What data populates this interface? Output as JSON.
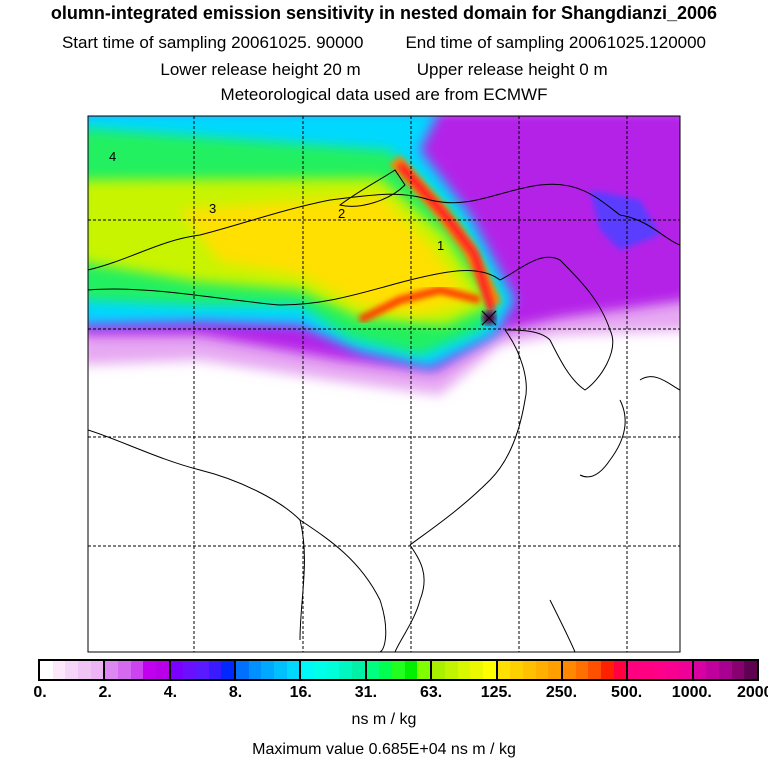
{
  "header": {
    "title": "olumn-integrated emission sensitivity in nested domain for Shangdianzi_2006",
    "start_label": "Start time of sampling 20061025. 90000",
    "end_label": "End time of sampling 20061025.120000",
    "lower_label": "Lower release height   20 m",
    "upper_label": "Upper release height    0 m",
    "met_label": "Meteorological data used are from ECMWF"
  },
  "map": {
    "contour_labels": [
      "1",
      "2",
      "3",
      "4"
    ],
    "station": "Shangdianzi"
  },
  "colorbar": {
    "ticks": [
      "0.",
      "2.",
      "4.",
      "8.",
      "16.",
      "31.",
      "63.",
      "125.",
      "250.",
      "500.",
      "1000.",
      "2000."
    ],
    "colors": [
      [
        "#ffffff",
        "#fbe9fb",
        "#f6d6f8",
        "#f1c4f6",
        "#ecb4f4"
      ],
      [
        "#dd88f0",
        "#d46af0",
        "#cc44f0",
        "#c200f0",
        "#b800e8"
      ],
      [
        "#7a00ff",
        "#6a10ff",
        "#5a1aff",
        "#3a1aff",
        "#0028ff"
      ],
      [
        "#0070ff",
        "#0090ff",
        "#00a8ff",
        "#00c0ff",
        "#00d8ff"
      ],
      [
        "#00f8f8",
        "#00ffe8",
        "#00ffd8",
        "#00f8c0",
        "#00f0a8"
      ],
      [
        "#00ff80",
        "#00ff50",
        "#20ff20",
        "#00f000",
        "#80ff00"
      ],
      [
        "#a8f000",
        "#c0f400",
        "#d8f800",
        "#ecf800",
        "#ffff00"
      ],
      [
        "#ffe000",
        "#ffd000",
        "#ffc000",
        "#ffb000",
        "#ffa000"
      ],
      [
        "#ff8800",
        "#ff7000",
        "#ff5000",
        "#ff2000",
        "#ff0040"
      ],
      [
        "#ff0080",
        "#ff0080",
        "#ff0088",
        "#f80090",
        "#f00098"
      ],
      [
        "#d800a0",
        "#c0009c",
        "#a80090",
        "#880070",
        "#600050"
      ]
    ],
    "unit": "ns m / kg",
    "max_value": "Maximum value  0.685E+04 ns m / kg"
  }
}
